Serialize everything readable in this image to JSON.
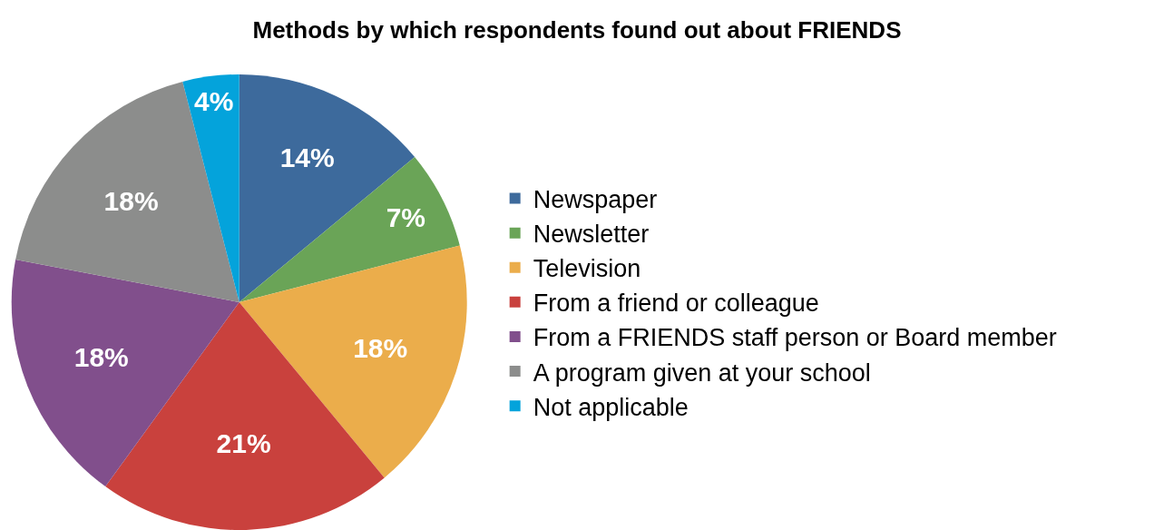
{
  "chart_data": {
    "type": "pie",
    "title": "Methods by which respondents found out about FRIENDS",
    "categories": [
      "Newspaper",
      "Newsletter",
      "Television",
      "From a friend or colleague",
      "From a FRIENDS staff person or Board member",
      "A program given at your school",
      "Not applicable"
    ],
    "values": [
      14,
      7,
      18,
      21,
      18,
      18,
      4
    ],
    "colors": [
      "#3d6a9c",
      "#6aa457",
      "#ebad4b",
      "#c9413d",
      "#814f8c",
      "#8c8d8c",
      "#04a3db"
    ],
    "value_labels": [
      "14%",
      "7%",
      "18%",
      "21%",
      "18%",
      "18%",
      "4%"
    ],
    "legend": "right"
  }
}
